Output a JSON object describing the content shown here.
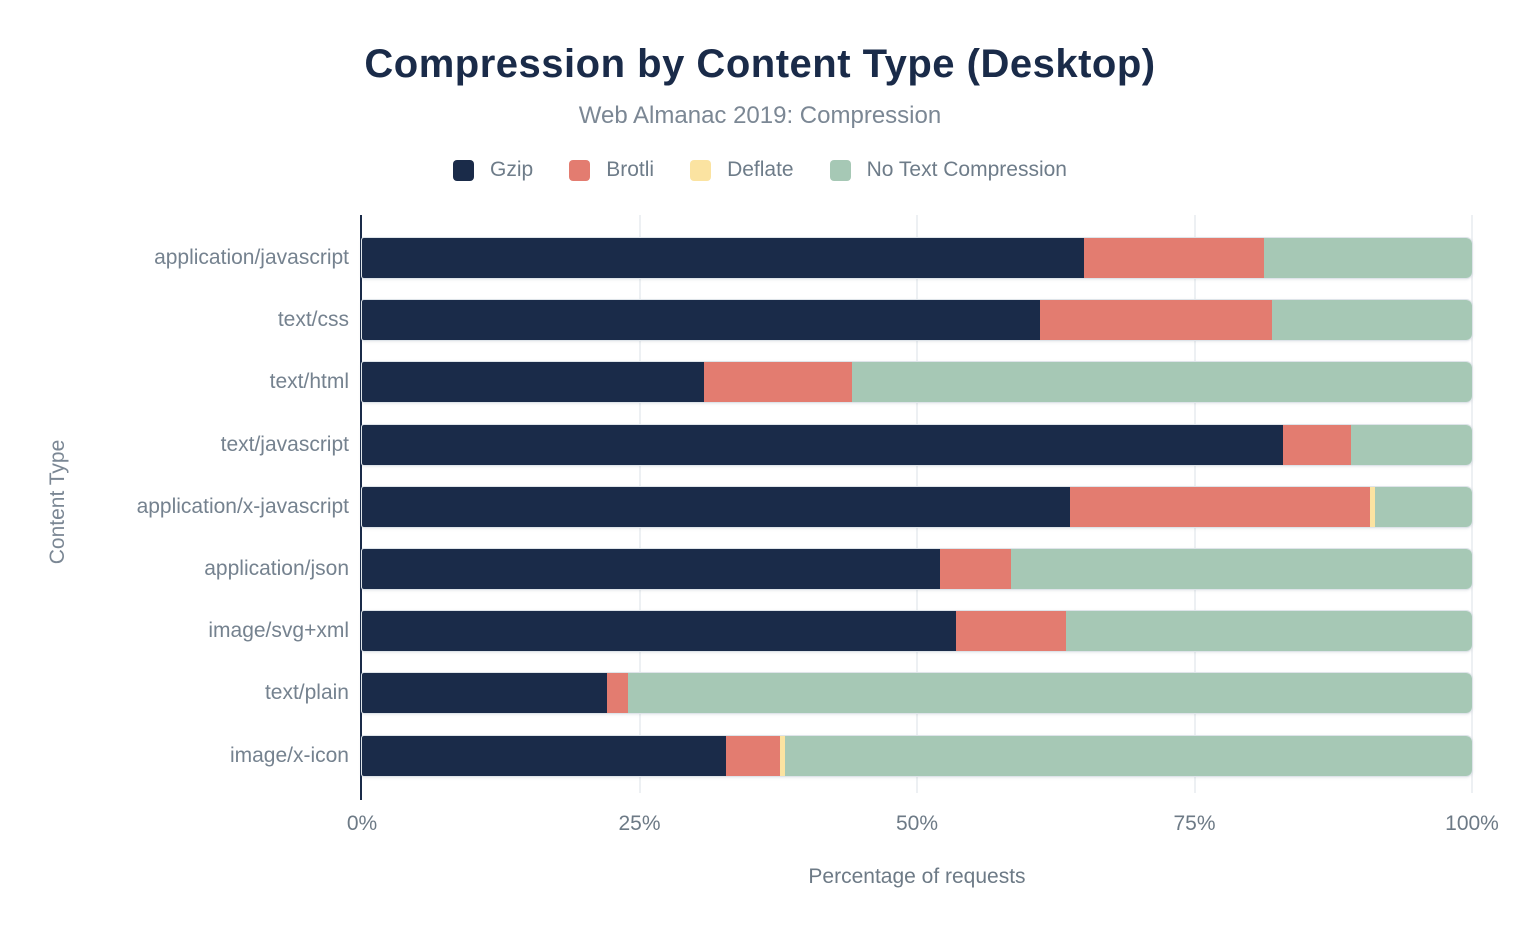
{
  "chart": {
    "title": "Compression by Content Type (Desktop)",
    "subtitle": "Web Almanac 2019: Compression",
    "x_axis_title": "Percentage of requests",
    "y_axis_title": "Content Type"
  },
  "chart_data": {
    "type": "bar",
    "orientation": "horizontal",
    "stacked": true,
    "value_unit": "percent",
    "xlim": [
      0,
      100
    ],
    "grid": true,
    "legend_position": "top",
    "x_ticks": [
      {
        "value": 0,
        "label": "0%"
      },
      {
        "value": 25,
        "label": "25%"
      },
      {
        "value": 50,
        "label": "50%"
      },
      {
        "value": 75,
        "label": "75%"
      },
      {
        "value": 100,
        "label": "100%"
      }
    ],
    "categories": [
      "application/javascript",
      "text/css",
      "text/html",
      "text/javascript",
      "application/x-javascript",
      "application/json",
      "image/svg+xml",
      "text/plain",
      "image/x-icon"
    ],
    "series": [
      {
        "name": "Gzip",
        "color": "#1a2b49",
        "values": [
          65.0,
          61.1,
          30.8,
          83.0,
          63.8,
          52.1,
          53.5,
          22.1,
          32.8
        ]
      },
      {
        "name": "Brotli",
        "color": "#e37c70",
        "values": [
          16.3,
          20.9,
          13.3,
          6.1,
          27.0,
          6.4,
          9.9,
          1.9,
          4.9
        ]
      },
      {
        "name": "Deflate",
        "color": "#fbe3a1",
        "values": [
          0,
          0,
          0,
          0,
          0.5,
          0,
          0,
          0,
          0.4
        ]
      },
      {
        "name": "No Text Compression",
        "color": "#a6c8b5",
        "values": [
          18.7,
          18.0,
          55.9,
          10.9,
          8.7,
          41.5,
          36.6,
          76.0,
          61.9
        ]
      }
    ],
    "colors": {
      "axis_line": "#1a2b49",
      "gridline": "#edf0f3",
      "title": "#1a2b49",
      "subtitle": "#7b8794",
      "axis_labels": "#6d7a86"
    }
  }
}
